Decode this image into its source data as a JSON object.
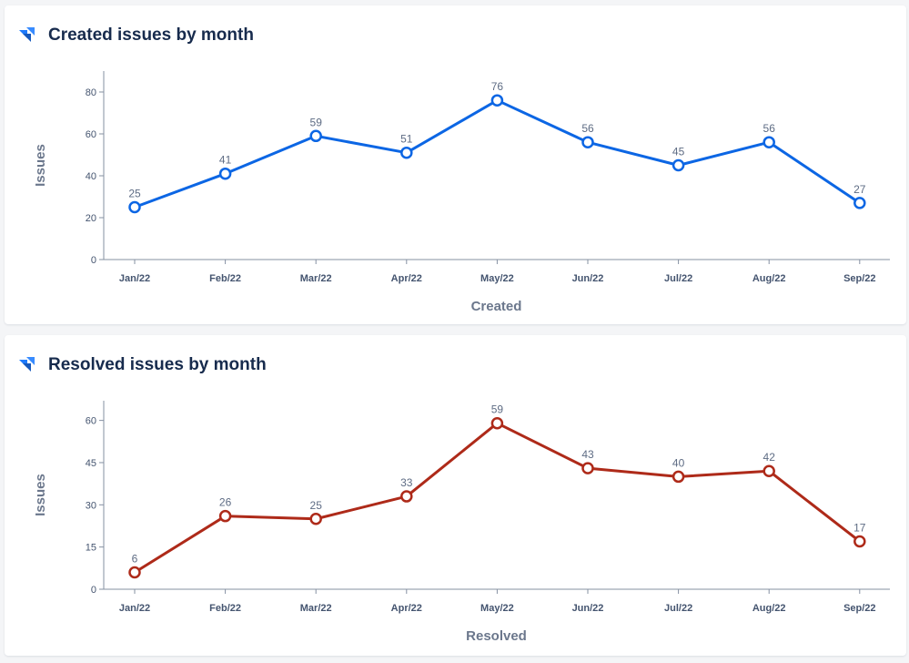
{
  "chart_data": [
    {
      "type": "line",
      "title": "Created issues by month",
      "xlabel": "Created",
      "ylabel": "Issues",
      "categories": [
        "Jan/22",
        "Feb/22",
        "Mar/22",
        "Apr/22",
        "May/22",
        "Jun/22",
        "Jul/22",
        "Aug/22",
        "Sep/22"
      ],
      "values": [
        25,
        41,
        59,
        51,
        76,
        56,
        45,
        56,
        27
      ],
      "labels": [
        "25",
        "41",
        "59",
        "51",
        "76",
        "56",
        "45",
        "56",
        "27"
      ],
      "ylim": [
        0,
        90
      ],
      "yticks": [
        0,
        20,
        40,
        60,
        80
      ],
      "ytick_labels": [
        "0",
        "20",
        "40",
        "60",
        "80"
      ],
      "color": "#0c66e4",
      "grid": false
    },
    {
      "type": "line",
      "title": "Resolved issues by month",
      "xlabel": "Resolved",
      "ylabel": "Issues",
      "categories": [
        "Jan/22",
        "Feb/22",
        "Mar/22",
        "Apr/22",
        "May/22",
        "Jun/22",
        "Jul/22",
        "Aug/22",
        "Sep/22"
      ],
      "values": [
        6,
        26,
        25,
        33,
        59,
        43,
        40,
        42,
        17
      ],
      "labels": [
        "6",
        "26",
        "25",
        "33",
        "59",
        "43",
        "40",
        "42",
        "17"
      ],
      "ylim": [
        0,
        67
      ],
      "yticks": [
        0,
        15,
        30,
        45,
        60
      ],
      "ytick_labels": [
        "0",
        "15",
        "30",
        "45",
        "60"
      ],
      "color": "#ae2a19",
      "grid": false
    }
  ],
  "colors": {
    "logo": "#1d7afc",
    "title": "#172b4d",
    "axis": "#8590a2"
  },
  "icons": {
    "logo": "jira-logo-icon"
  }
}
